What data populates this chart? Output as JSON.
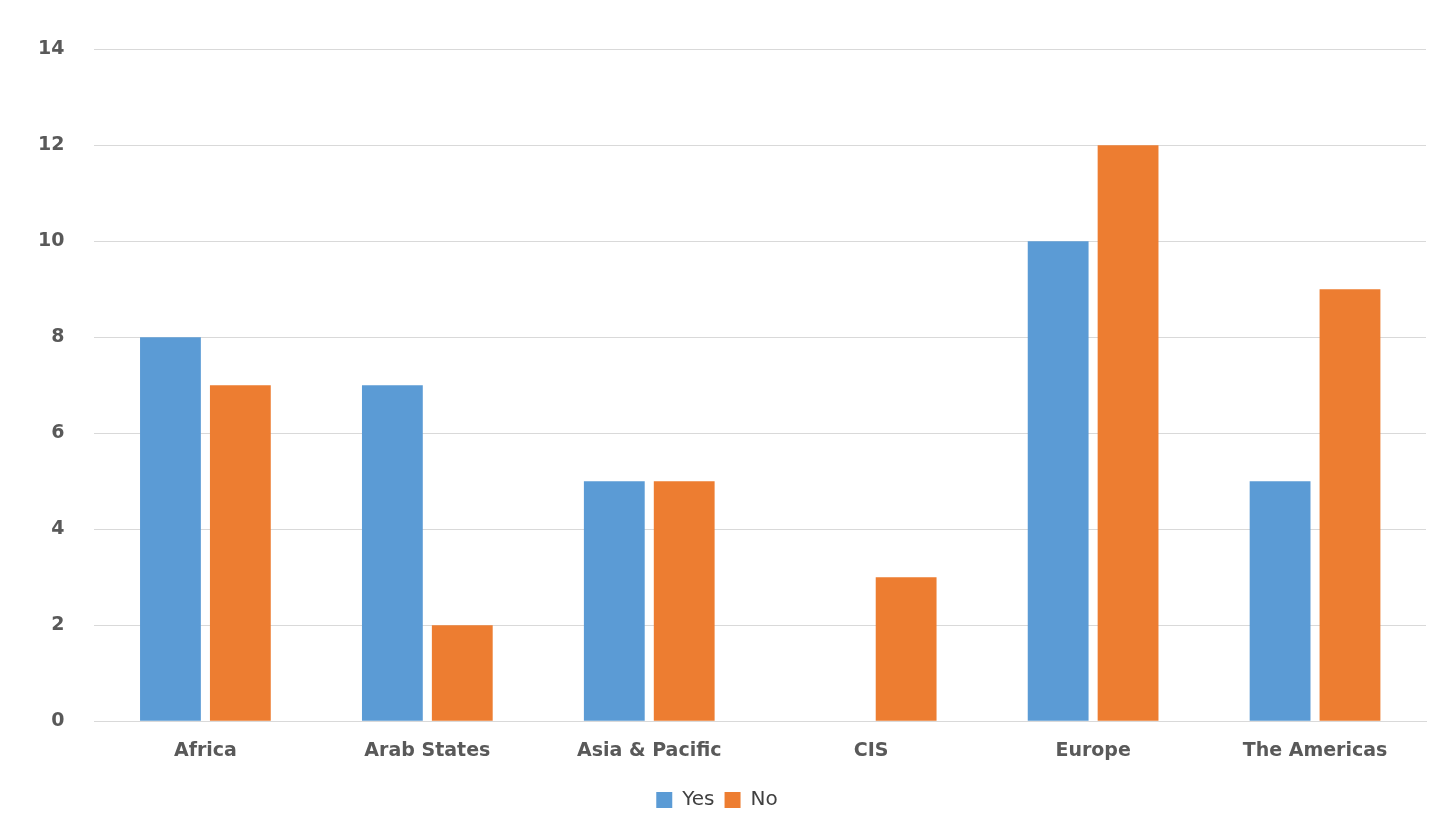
{
  "chart_data": {
    "type": "bar",
    "categories": [
      "Africa",
      "Arab States",
      "Asia & Pacific",
      "CIS",
      "Europe",
      "The Americas"
    ],
    "series": [
      {
        "name": "Yes",
        "color": "#5b9bd5",
        "values": [
          8,
          7,
          5,
          0,
          10,
          5
        ]
      },
      {
        "name": "No",
        "color": "#ed7d31",
        "values": [
          7,
          2,
          5,
          3,
          12,
          9
        ]
      }
    ],
    "ylim": [
      0,
      14
    ],
    "yticks": [
      0,
      2,
      4,
      6,
      8,
      10,
      12,
      14
    ],
    "grid": "y",
    "legend": "bottom"
  }
}
